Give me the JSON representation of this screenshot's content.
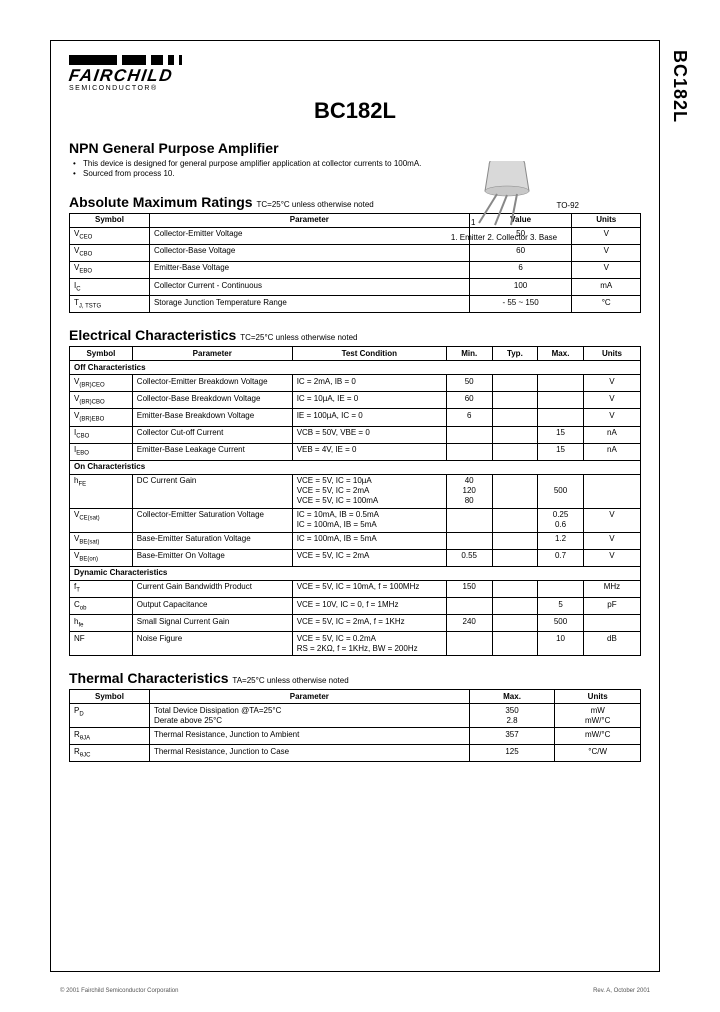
{
  "side_label": "BC182L",
  "logo": {
    "name": "FAIRCHILD",
    "sub": "SEMICONDUCTOR®"
  },
  "title": "BC182L",
  "product_heading": "NPN General Purpose Amplifier",
  "bullets": [
    "This device is designed for general purpose amplifier application at collector currents to 100mA.",
    "Sourced from process 10."
  ],
  "package": {
    "type": "TO-92",
    "pins": "1. Emitter   2. Collector   3. Base",
    "pin1": "1"
  },
  "abs_max": {
    "title": "Absolute Maximum Ratings",
    "note": "TC=25°C unless otherwise noted",
    "headers": [
      "Symbol",
      "Parameter",
      "Value",
      "Units"
    ],
    "rows": [
      {
        "sym": "V",
        "sub": "CEO",
        "param": "Collector-Emitter Voltage",
        "value": "50",
        "units": "V"
      },
      {
        "sym": "V",
        "sub": "CBO",
        "param": "Collector-Base Voltage",
        "value": "60",
        "units": "V"
      },
      {
        "sym": "V",
        "sub": "EBO",
        "param": "Emitter-Base Voltage",
        "value": "6",
        "units": "V"
      },
      {
        "sym": "I",
        "sub": "C",
        "param": "Collector Current            - Continuous",
        "value": "100",
        "units": "mA"
      },
      {
        "sym": "T",
        "sub": "J, TSTG",
        "param": "Storage Junction Temperature Range",
        "value": "- 55 ~ 150",
        "units": "°C"
      }
    ]
  },
  "elec": {
    "title": "Electrical Characteristics",
    "note": "TC=25°C unless otherwise noted",
    "headers": [
      "Symbol",
      "Parameter",
      "Test Condition",
      "Min.",
      "Typ.",
      "Max.",
      "Units"
    ],
    "groups": [
      {
        "name": "Off Characteristics",
        "rows": [
          {
            "sym": "V",
            "sub": "(BR)CEO",
            "param": "Collector-Emitter Breakdown Voltage",
            "cond": "IC = 2mA, IB = 0",
            "min": "50",
            "typ": "",
            "max": "",
            "units": "V"
          },
          {
            "sym": "V",
            "sub": "(BR)CBO",
            "param": "Collector-Base Breakdown Voltage",
            "cond": "IC = 10µA, IE = 0",
            "min": "60",
            "typ": "",
            "max": "",
            "units": "V"
          },
          {
            "sym": "V",
            "sub": "(BR)EBO",
            "param": "Emitter-Base Breakdown Voltage",
            "cond": "IE = 100µA, IC = 0",
            "min": "6",
            "typ": "",
            "max": "",
            "units": "V"
          },
          {
            "sym": "I",
            "sub": "CBO",
            "param": "Collector Cut-off Current",
            "cond": "VCB = 50V, VBE = 0",
            "min": "",
            "typ": "",
            "max": "15",
            "units": "nA"
          },
          {
            "sym": "I",
            "sub": "EBO",
            "param": "Emitter-Base Leakage Current",
            "cond": "VEB = 4V, IE = 0",
            "min": "",
            "typ": "",
            "max": "15",
            "units": "nA"
          }
        ]
      },
      {
        "name": "On Characteristics",
        "rows": [
          {
            "sym": "h",
            "sub": "FE",
            "param": "DC Current Gain",
            "cond": "VCE = 5V, IC = 10µA\nVCE = 5V, IC = 2mA\nVCE = 5V, IC = 100mA",
            "min": "40\n120\n80",
            "typ": "",
            "max": "\n500",
            "units": ""
          },
          {
            "sym": "V",
            "sub": "CE(sat)",
            "param": "Collector-Emitter Saturation Voltage",
            "cond": "IC = 10mA, IB = 0.5mA\nIC = 100mA, IB = 5mA",
            "min": "",
            "typ": "",
            "max": "0.25\n0.6",
            "units": "V"
          },
          {
            "sym": "V",
            "sub": "BE(sat)",
            "param": "Base-Emitter Saturation Voltage",
            "cond": "IC = 100mA, IB = 5mA",
            "min": "",
            "typ": "",
            "max": "1.2",
            "units": "V"
          },
          {
            "sym": "V",
            "sub": "BE(on)",
            "param": "Base-Emitter On Voltage",
            "cond": "VCE = 5V, IC = 2mA",
            "min": "0.55",
            "typ": "",
            "max": "0.7",
            "units": "V"
          }
        ]
      },
      {
        "name": "Dynamic Characteristics",
        "rows": [
          {
            "sym": "f",
            "sub": "T",
            "param": "Current Gain Bandwidth Product",
            "cond": "VCE = 5V, IC = 10mA, f = 100MHz",
            "min": "150",
            "typ": "",
            "max": "",
            "units": "MHz"
          },
          {
            "sym": "C",
            "sub": "ob",
            "param": "Output Capacitance",
            "cond": "VCE = 10V, IC = 0, f = 1MHz",
            "min": "",
            "typ": "",
            "max": "5",
            "units": "pF"
          },
          {
            "sym": "h",
            "sub": "fe",
            "param": "Small Signal Current Gain",
            "cond": "VCE = 5V, IC = 2mA, f = 1KHz",
            "min": "240",
            "typ": "",
            "max": "500",
            "units": ""
          },
          {
            "sym": "NF",
            "sub": "",
            "param": "Noise Figure",
            "cond": "VCE = 5V, IC = 0.2mA\nRS = 2KΩ, f = 1KHz, BW = 200Hz",
            "min": "",
            "typ": "",
            "max": "10",
            "units": "dB"
          }
        ]
      }
    ]
  },
  "thermal": {
    "title": "Thermal Characteristics",
    "note": "TA=25°C unless otherwise noted",
    "headers": [
      "Symbol",
      "Parameter",
      "Max.",
      "Units"
    ],
    "rows": [
      {
        "sym": "P",
        "sub": "D",
        "param": "Total Device Dissipation @TA=25°C\nDerate above 25°C",
        "max": "350\n2.8",
        "units": "mW\nmW/°C"
      },
      {
        "sym": "R",
        "sub": "θJA",
        "param": "Thermal Resistance, Junction to Ambient",
        "max": "357",
        "units": "mW/°C"
      },
      {
        "sym": "R",
        "sub": "θJC",
        "param": "Thermal Resistance, Junction to Case",
        "max": "125",
        "units": "°C/W"
      }
    ]
  },
  "footer": {
    "left": "© 2001 Fairchild Semiconductor Corporation",
    "right": "Rev. A, October 2001"
  },
  "colors": {
    "border": "#000000",
    "text": "#000000",
    "pkg_fill": "#d9d9d9",
    "pkg_stroke": "#888888"
  }
}
